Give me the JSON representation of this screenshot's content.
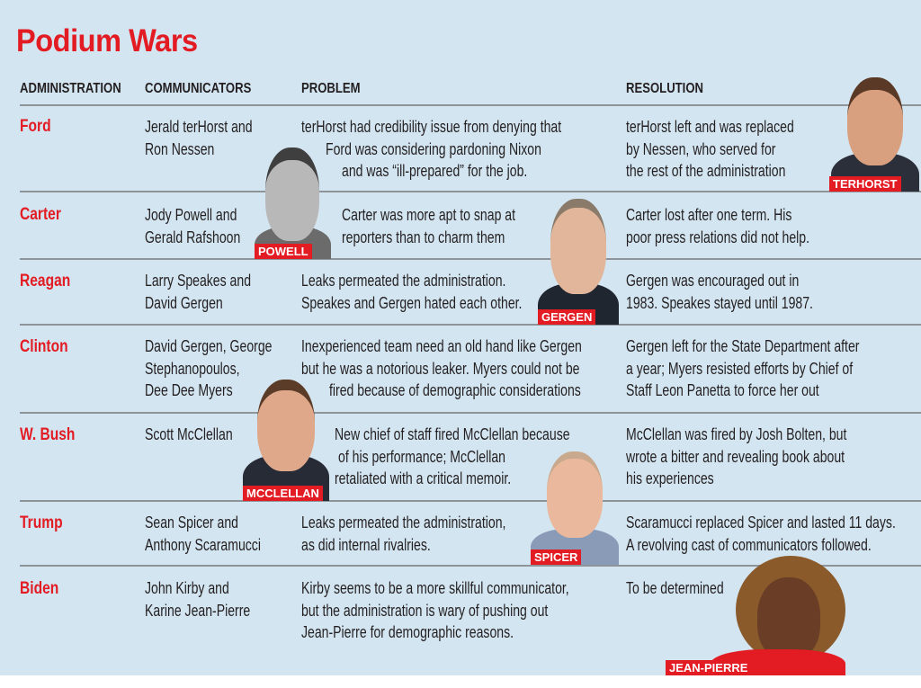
{
  "title": "Podium Wars",
  "headers": {
    "administration": "ADMINISTRATION",
    "communicators": "COMMUNICATORS",
    "problem": "PROBLEM",
    "resolution": "RESOLUTION"
  },
  "colors": {
    "accent": "#e31b23",
    "background": "#d3e5f1",
    "text": "#231f20"
  },
  "rows": [
    {
      "administration": "Ford",
      "communicators": [
        "Jerald terHorst and",
        "Ron Nessen"
      ],
      "problem": [
        "terHorst had credibility issue from denying that",
        "Ford was considering pardoning Nixon",
        "and was “ill-prepared” for the job."
      ],
      "resolution": [
        "terHorst left and was replaced",
        "by Nessen, who served for",
        "the rest of the administration"
      ]
    },
    {
      "administration": "Carter",
      "communicators": [
        "Jody Powell and",
        "Gerald Rafshoon"
      ],
      "problem": [
        "Carter was more apt to snap at",
        "reporters than to charm them"
      ],
      "resolution": [
        "Carter lost after one term. His",
        "poor press relations did not help."
      ]
    },
    {
      "administration": "Reagan",
      "communicators": [
        "Larry Speakes and",
        "David Gergen"
      ],
      "problem": [
        "Leaks permeated the administration.",
        "Speakes and Gergen hated each other."
      ],
      "resolution": [
        "Gergen was encouraged out in",
        "1983. Speakes stayed until 1987."
      ]
    },
    {
      "administration": "Clinton",
      "communicators": [
        "David Gergen, George",
        "Stephanopoulos,",
        "Dee Dee Myers"
      ],
      "problem": [
        "Inexperienced team need an old hand like Gergen",
        "but he was a notorious leaker. Myers could not be",
        "fired because of demographic considerations"
      ],
      "resolution": [
        "Gergen left for the State Department after",
        "a year; Myers resisted efforts by Chief of",
        "Staff Leon Panetta to force her out"
      ]
    },
    {
      "administration": "W. Bush",
      "communicators": [
        "Scott McClellan"
      ],
      "problem": [
        "New chief of staff fired McClellan because",
        "of his performance; McClellan",
        "retaliated with a critical memoir."
      ],
      "resolution": [
        "McClellan was fired by Josh Bolten, but",
        "wrote a bitter and revealing book about",
        "his experiences"
      ]
    },
    {
      "administration": "Trump",
      "communicators": [
        "Sean Spicer and",
        "Anthony Scaramucci"
      ],
      "problem": [
        "Leaks permeated the administration,",
        "as did internal rivalries."
      ],
      "resolution": [
        "Scaramucci replaced Spicer and lasted 11 days.",
        "A revolving cast of communicators followed."
      ]
    },
    {
      "administration": "Biden",
      "communicators": [
        "John Kirby and",
        "Karine Jean-Pierre"
      ],
      "problem": [
        "Kirby seems to be a more skillful communicator,",
        "but the administration is wary of pushing out",
        "Jean-Pierre for demographic reasons."
      ],
      "resolution": [
        "To be determined"
      ]
    }
  ],
  "photos": {
    "terhorst": "TERHORST",
    "powell": "POWELL",
    "gergen": "GERGEN",
    "mcclellan": "MCCLELLAN",
    "spicer": "SPICER",
    "jean_pierre": "JEAN-PIERRE"
  }
}
